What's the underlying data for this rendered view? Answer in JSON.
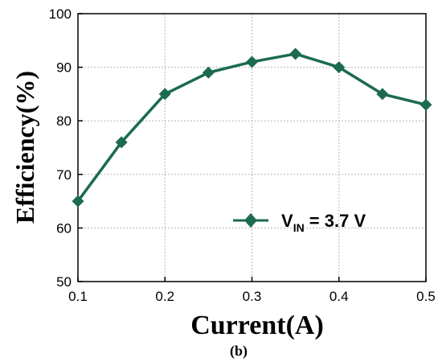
{
  "chart_data": {
    "type": "line",
    "xlabel": "Current(A)",
    "ylabel": "Efficiency(%)",
    "xlim": [
      0.1,
      0.5
    ],
    "ylim": [
      50,
      100
    ],
    "xticks": [
      "0.1",
      "0.2",
      "0.3",
      "0.4",
      "0.5"
    ],
    "yticks": [
      "50",
      "60",
      "70",
      "80",
      "90",
      "100"
    ],
    "grid": true,
    "legend_position": "bottom-right",
    "series": [
      {
        "name_main": "V",
        "name_subscript": "IN",
        "name_suffix": " = 3.7 V",
        "color": "#1b6b4e",
        "marker": "diamond",
        "x": [
          0.1,
          0.15,
          0.2,
          0.25,
          0.3,
          0.35,
          0.4,
          0.45,
          0.5
        ],
        "y": [
          65,
          76,
          85,
          89,
          91,
          92.5,
          90,
          85,
          83
        ]
      }
    ]
  },
  "figure_label": "(b)"
}
